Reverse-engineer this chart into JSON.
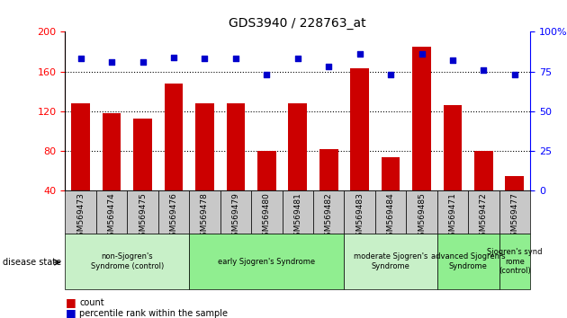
{
  "title": "GDS3940 / 228763_at",
  "samples": [
    "GSM569473",
    "GSM569474",
    "GSM569475",
    "GSM569476",
    "GSM569478",
    "GSM569479",
    "GSM569480",
    "GSM569481",
    "GSM569482",
    "GSM569483",
    "GSM569484",
    "GSM569485",
    "GSM569471",
    "GSM569472",
    "GSM569477"
  ],
  "counts": [
    128,
    118,
    113,
    148,
    128,
    128,
    80,
    128,
    82,
    163,
    74,
    185,
    126,
    80,
    55
  ],
  "percentiles": [
    83,
    81,
    81,
    84,
    83,
    83,
    73,
    83,
    78,
    86,
    73,
    86,
    82,
    76,
    73
  ],
  "groups": [
    {
      "label": "non-Sjogren's\nSyndrome (control)",
      "start": 0,
      "end": 4,
      "color": "#c8f0c8"
    },
    {
      "label": "early Sjogren's Syndrome",
      "start": 4,
      "end": 9,
      "color": "#90ee90"
    },
    {
      "label": "moderate Sjogren's\nSyndrome",
      "start": 9,
      "end": 12,
      "color": "#c8f0c8"
    },
    {
      "label": "advanced Sjogren's\nSyndrome",
      "start": 12,
      "end": 14,
      "color": "#90ee90"
    },
    {
      "label": "Sjogren's synd\nrome\n(control)",
      "start": 14,
      "end": 15,
      "color": "#90ee90"
    }
  ],
  "ylim_left": [
    40,
    200
  ],
  "ylim_right": [
    0,
    100
  ],
  "yticks_left": [
    40,
    80,
    120,
    160,
    200
  ],
  "yticks_right": [
    0,
    25,
    50,
    75,
    100
  ],
  "bar_color": "#cc0000",
  "dot_color": "#0000cc",
  "tick_bg": "#c8c8c8"
}
